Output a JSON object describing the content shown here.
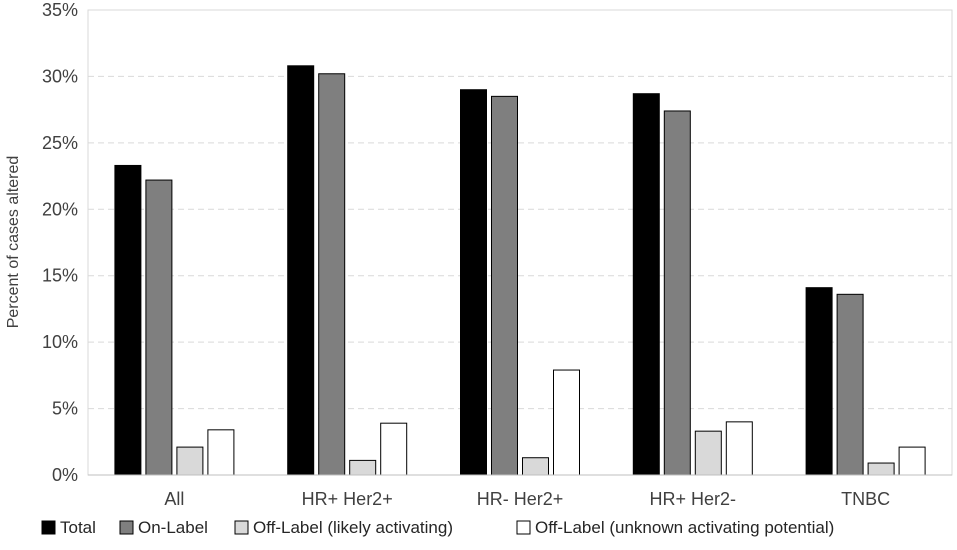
{
  "chart_data": {
    "type": "bar",
    "title": "",
    "xlabel": "",
    "ylabel": "Percent of cases altered",
    "categories": [
      "All",
      "HR+ Her2+",
      "HR- Her2+",
      "HR+ Her2-",
      "TNBC"
    ],
    "series": [
      {
        "name": "Total",
        "color": "#000000",
        "values": [
          23.3,
          30.8,
          29.0,
          28.7,
          14.1
        ]
      },
      {
        "name": "On-Label",
        "color": "#7f7f7f",
        "values": [
          22.2,
          30.2,
          28.5,
          27.4,
          13.6
        ]
      },
      {
        "name": "Off-Label (likely activating)",
        "color": "#d9d9d9",
        "values": [
          2.1,
          1.1,
          1.3,
          3.3,
          0.9
        ]
      },
      {
        "name": "Off-Label (unknown activating potential)",
        "color": "#ffffff",
        "values": [
          3.4,
          3.9,
          7.9,
          4.0,
          2.1
        ]
      }
    ],
    "ylim": [
      0,
      35
    ],
    "yticks": [
      0,
      5,
      10,
      15,
      20,
      25,
      30,
      35
    ],
    "ytick_labels": [
      "0%",
      "5%",
      "10%",
      "15%",
      "20%",
      "25%",
      "30%",
      "35%"
    ],
    "grid": true,
    "legend_position": "bottom"
  }
}
